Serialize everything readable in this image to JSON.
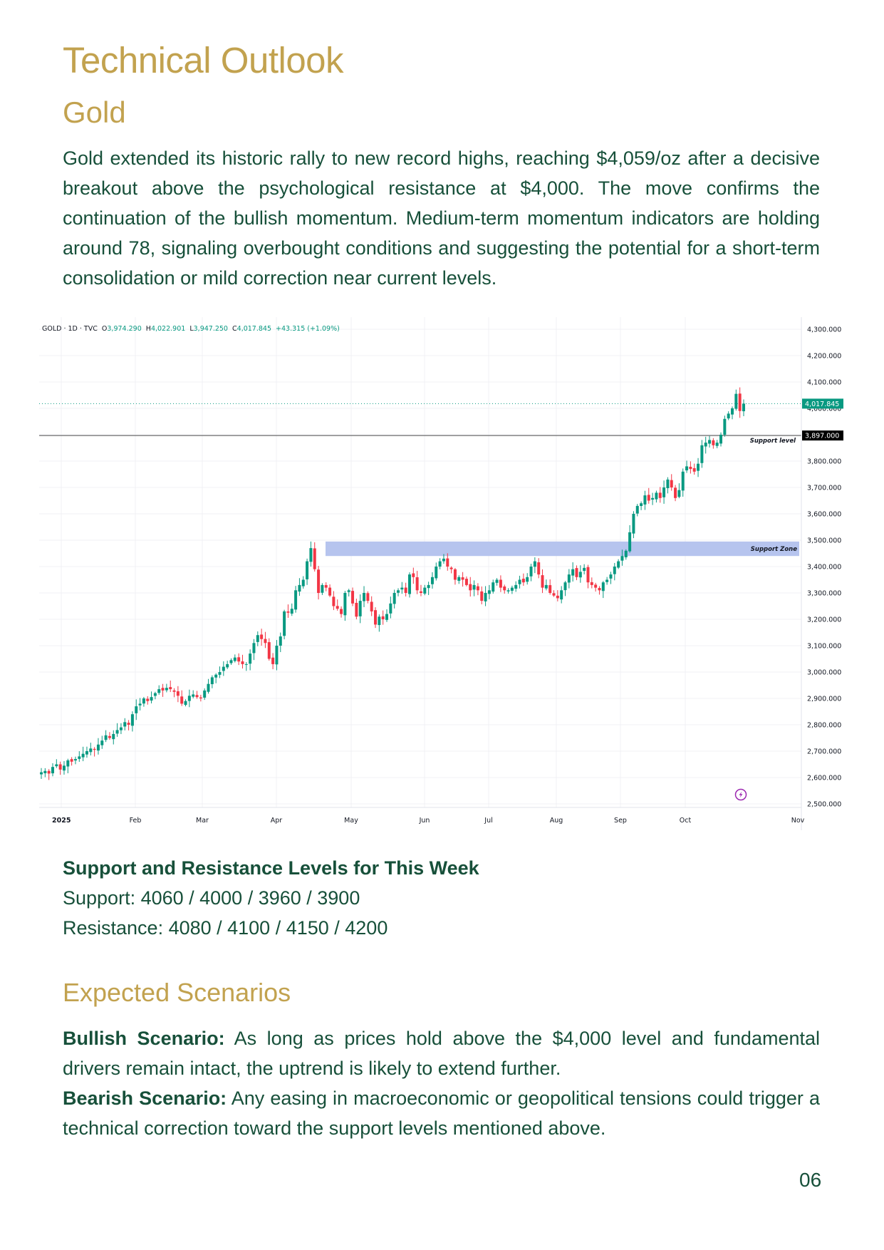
{
  "page": {
    "title": "Technical Outlook",
    "subtitle": "Gold",
    "intro": "Gold extended its historic rally to new record highs, reaching $4,059/oz after a decisive breakout above the psychological resistance at $4,000. The move confirms the continuation of the bullish momentum. Medium-term momentum indicators are holding around 78, signaling overbought conditions and suggesting the potential for a short-term consolidation or mild correction near current levels.",
    "levels": {
      "heading": "Support and Resistance Levels for This Week",
      "support": "Support: 4060 / 4000 / 3960 / 3900",
      "resistance": "Resistance: 4080 / 4100 / 4150 / 4200"
    },
    "scenarios": {
      "heading": "Expected Scenarios",
      "bullish_label": "Bullish Scenario:",
      "bullish_text": " As long as prices hold above the $4,000 level and fundamental drivers remain intact, the uptrend is likely to extend further.",
      "bearish_label": "Bearish Scenario:",
      "bearish_text": " Any easing in macroeconomic or geopolitical tensions could trigger a technical correction toward the support levels mentioned above."
    },
    "page_number": "06"
  },
  "colors": {
    "heading_gold": "#c2a24f",
    "body_green": "#17503a",
    "candle_up": "#089981",
    "candle_down": "#f23645",
    "support_zone": "#b6c4ee",
    "support_line": "#4a4a4a",
    "lightning_icon": "#9c27b0"
  },
  "chart_data": {
    "type": "candlestick",
    "title": "GOLD · 1D · TVC",
    "legend": {
      "symbol": "GOLD · 1D · TVC",
      "open_label": "O",
      "open": "3,974.290",
      "high_label": "H",
      "high": "4,022.901",
      "low_label": "L",
      "low": "3,947.250",
      "close_label": "C",
      "close": "4,017.845",
      "change": "+43.315 (+1.09%)"
    },
    "x_tick_labels": [
      "2025",
      "Feb",
      "Mar",
      "Apr",
      "May",
      "Jun",
      "Jul",
      "Aug",
      "Sep",
      "Oct",
      "Nov"
    ],
    "y_tick_labels": [
      "4,300.000",
      "4,200.000",
      "4,100.000",
      "4,000.000",
      "3,900.000",
      "3,800.000",
      "3,700.000",
      "3,600.000",
      "3,500.000",
      "3,400.000",
      "3,300.000",
      "3,200.000",
      "3,100.000",
      "3,000.000",
      "2,900.000",
      "2,800.000",
      "2,700.000",
      "2,600.000",
      "2,500.000"
    ],
    "ylim": [
      2480,
      4320
    ],
    "grid": true,
    "current_price_tag": "4,017.845",
    "support_level": {
      "value": 3897,
      "label": "Support level",
      "tag": "3,897.000"
    },
    "support_zone": {
      "low": 3440,
      "high": 3495,
      "label": "Support Zone",
      "start": "Apr 22"
    },
    "monthly_closes_approx": [
      {
        "month": "Jan",
        "close": 2798
      },
      {
        "month": "Feb",
        "close": 2858
      },
      {
        "month": "Mar",
        "close": 3124
      },
      {
        "month": "Apr",
        "close": 3288
      },
      {
        "month": "May",
        "close": 3289
      },
      {
        "month": "Jun",
        "close": 3303
      },
      {
        "month": "Jul",
        "close": 3290
      },
      {
        "month": "Aug",
        "close": 3448
      },
      {
        "month": "Sep",
        "close": 3858
      },
      {
        "month": "Oct (to date)",
        "close": 4017.845
      }
    ],
    "daily_closes": [
      2620,
      2625,
      2615,
      2640,
      2650,
      2630,
      2645,
      2665,
      2660,
      2670,
      2680,
      2690,
      2700,
      2710,
      2705,
      2725,
      2740,
      2760,
      2750,
      2765,
      2780,
      2790,
      2810,
      2800,
      2840,
      2870,
      2880,
      2900,
      2890,
      2905,
      2920,
      2935,
      2930,
      2940,
      2935,
      2925,
      2910,
      2880,
      2890,
      2910,
      2915,
      2905,
      2900,
      2930,
      2955,
      2980,
      2990,
      3000,
      3020,
      3030,
      3045,
      3055,
      3040,
      3030,
      3030,
      3070,
      3110,
      3140,
      3125,
      3110,
      3050,
      3030,
      3100,
      3135,
      3230,
      3225,
      3240,
      3310,
      3330,
      3350,
      3420,
      3470,
      3390,
      3300,
      3330,
      3320,
      3290,
      3250,
      3240,
      3220,
      3300,
      3310,
      3260,
      3210,
      3270,
      3300,
      3270,
      3230,
      3180,
      3210,
      3200,
      3220,
      3260,
      3300,
      3310,
      3320,
      3300,
      3370,
      3360,
      3310,
      3300,
      3320,
      3330,
      3360,
      3400,
      3420,
      3430,
      3400,
      3390,
      3350,
      3360,
      3350,
      3330,
      3310,
      3330,
      3310,
      3270,
      3300,
      3310,
      3340,
      3350,
      3320,
      3310,
      3310,
      3320,
      3330,
      3350,
      3340,
      3360,
      3400,
      3420,
      3370,
      3320,
      3330,
      3300,
      3290,
      3280,
      3310,
      3340,
      3370,
      3390,
      3360,
      3380,
      3395,
      3340,
      3330,
      3320,
      3310,
      3340,
      3350,
      3370,
      3400,
      3420,
      3440,
      3460,
      3530,
      3600,
      3630,
      3640,
      3670,
      3650,
      3660,
      3680,
      3660,
      3700,
      3730,
      3700,
      3660,
      3690,
      3760,
      3780,
      3770,
      3760,
      3790,
      3860,
      3870,
      3880,
      3860,
      3870,
      3900,
      3960,
      3980,
      4000,
      4055,
      3990,
      4017.845
    ]
  }
}
